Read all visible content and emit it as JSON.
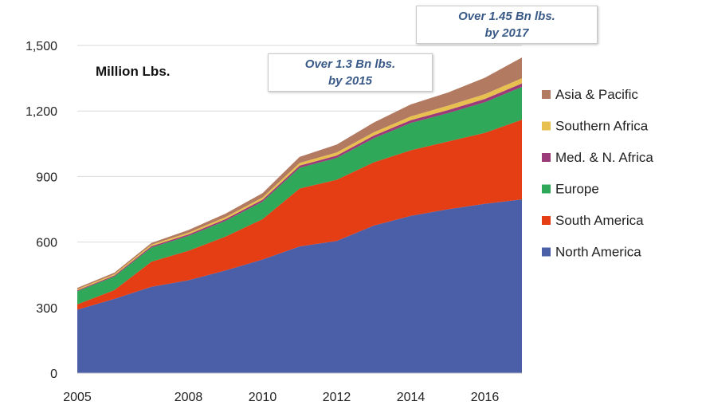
{
  "chart_data": {
    "type": "area",
    "stacked": true,
    "unit_label": "Million Lbs.",
    "x": [
      2005,
      2006,
      2007,
      2008,
      2009,
      2010,
      2011,
      2012,
      2013,
      2014,
      2015,
      2016,
      2017
    ],
    "x_tick_labels": [
      "2005",
      "2008",
      "2010",
      "2012",
      "2014",
      "2016"
    ],
    "x_tick_values": [
      2005,
      2008,
      2010,
      2012,
      2014,
      2016
    ],
    "y_tick_labels": [
      "0",
      "300",
      "600",
      "900",
      "1,200",
      "1,500"
    ],
    "y_tick_values": [
      0,
      300,
      600,
      900,
      1200,
      1500
    ],
    "ylim": [
      0,
      1500
    ],
    "grid": true,
    "legend_position": "right",
    "series": [
      {
        "name": "North America",
        "color": "#4b5ea8",
        "values": [
          290,
          340,
          395,
          425,
          470,
          520,
          580,
          605,
          675,
          720,
          750,
          775,
          795
        ]
      },
      {
        "name": "South America",
        "color": "#e53d14",
        "values": [
          25,
          40,
          115,
          135,
          155,
          185,
          265,
          280,
          290,
          300,
          310,
          325,
          365
        ]
      },
      {
        "name": "Europe",
        "color": "#2fa85a",
        "values": [
          60,
          62,
          65,
          68,
          72,
          80,
          95,
          100,
          110,
          125,
          130,
          140,
          150
        ]
      },
      {
        "name": "Med. & N. Africa",
        "color": "#9b3b7a",
        "values": [
          4,
          5,
          6,
          7,
          8,
          9,
          10,
          11,
          12,
          13,
          14,
          15,
          16
        ]
      },
      {
        "name": "Southern Africa",
        "color": "#e8c050",
        "values": [
          5,
          6,
          7,
          8,
          9,
          10,
          12,
          14,
          15,
          17,
          20,
          22,
          24
        ]
      },
      {
        "name": "Asia & Pacific",
        "color": "#b27a60",
        "values": [
          6,
          7,
          8,
          12,
          16,
          20,
          28,
          36,
          45,
          55,
          60,
          75,
          95
        ]
      }
    ],
    "annotations": [
      {
        "lines": [
          "Over 1.3 Bn lbs.",
          "by 2015"
        ]
      },
      {
        "lines": [
          "Over 1.45 Bn lbs.",
          "by 2017"
        ]
      }
    ]
  }
}
